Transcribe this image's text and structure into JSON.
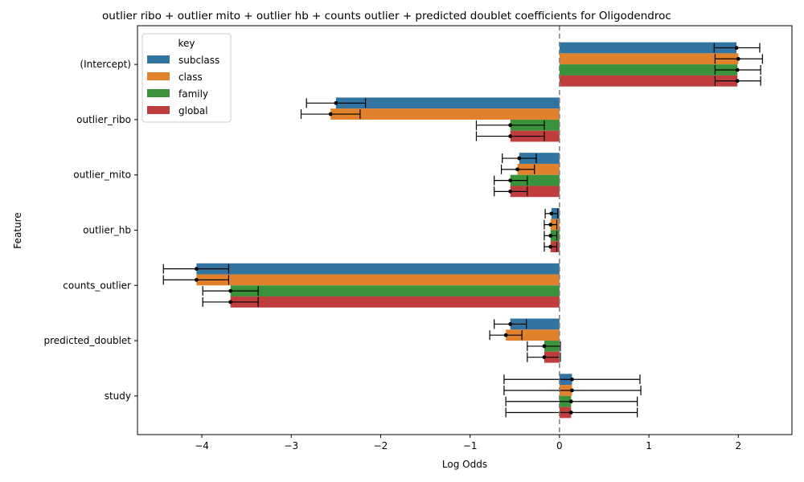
{
  "chart_data": {
    "type": "bar",
    "orientation": "horizontal",
    "title": "outlier ribo + outlier mito + outlier hb + counts outlier + predicted doublet coefficients for Oligodendroc",
    "xlabel": "Log Odds",
    "ylabel": "Feature",
    "xlim": [
      -4.72,
      2.6
    ],
    "xticks": [
      -4,
      -3,
      -2,
      -1,
      0,
      1,
      2
    ],
    "xtick_labels": [
      "−4",
      "−3",
      "−2",
      "−1",
      "0",
      "1",
      "2"
    ],
    "reference_line": 0,
    "grid": false,
    "legend": {
      "title": "key",
      "placement": "upper-left"
    },
    "categories": [
      "(Intercept)",
      "outlier_ribo",
      "outlier_mito",
      "outlier_hb",
      "counts_outlier",
      "predicted_doublet",
      "study"
    ],
    "series": [
      {
        "name": "subclass",
        "color": "#3274a1",
        "values": [
          1.98,
          -2.5,
          -0.45,
          -0.09,
          -4.06,
          -0.55,
          0.14
        ],
        "ci_low": [
          1.73,
          -2.83,
          -0.64,
          -0.16,
          -4.43,
          -0.73,
          -0.62
        ],
        "ci_high": [
          2.24,
          -2.17,
          -0.26,
          -0.02,
          -3.7,
          -0.37,
          0.9
        ]
      },
      {
        "name": "class",
        "color": "#e1812c",
        "values": [
          2.0,
          -2.56,
          -0.47,
          -0.1,
          -4.06,
          -0.6,
          0.14
        ],
        "ci_low": [
          1.74,
          -2.89,
          -0.65,
          -0.17,
          -4.43,
          -0.78,
          -0.62
        ],
        "ci_high": [
          2.27,
          -2.23,
          -0.28,
          -0.03,
          -3.7,
          -0.42,
          0.91
        ]
      },
      {
        "name": "family",
        "color": "#3a923a",
        "values": [
          1.99,
          -0.55,
          -0.55,
          -0.1,
          -3.68,
          -0.17,
          0.13
        ],
        "ci_low": [
          1.74,
          -0.93,
          -0.73,
          -0.17,
          -3.99,
          -0.36,
          -0.6
        ],
        "ci_high": [
          2.25,
          -0.17,
          -0.36,
          -0.03,
          -3.37,
          0.01,
          0.87
        ]
      },
      {
        "name": "global",
        "color": "#c03d3e",
        "values": [
          1.99,
          -0.55,
          -0.55,
          -0.1,
          -3.68,
          -0.17,
          0.13
        ],
        "ci_low": [
          1.74,
          -0.93,
          -0.73,
          -0.17,
          -3.99,
          -0.36,
          -0.6
        ],
        "ci_high": [
          2.25,
          -0.17,
          -0.36,
          -0.03,
          -3.37,
          0.01,
          0.87
        ]
      }
    ]
  }
}
